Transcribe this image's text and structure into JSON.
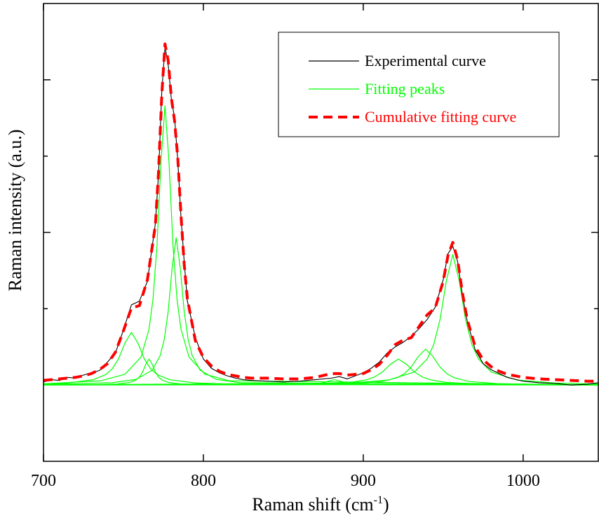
{
  "chart_data": {
    "type": "line",
    "xlabel": {
      "text": "Raman shift (cm",
      "sup": "-1",
      "tail": ")"
    },
    "ylabel": "Raman intensity (a.u.)",
    "xlim": [
      700,
      1047
    ],
    "ylim": [
      -1,
      5
    ],
    "xticks": [
      700,
      800,
      900,
      1000
    ],
    "yticks": [
      2,
      4
    ],
    "yminor": [
      1,
      3
    ],
    "ytick_labels": false,
    "legend": "upper right",
    "x": [
      700,
      705,
      710,
      715,
      720,
      725,
      730,
      735,
      740,
      745,
      750,
      755,
      760,
      765,
      770,
      772,
      774,
      776,
      778,
      780,
      782,
      784,
      786,
      788,
      790,
      795,
      800,
      805,
      810,
      815,
      820,
      825,
      830,
      840,
      850,
      860,
      870,
      880,
      885,
      890,
      895,
      900,
      905,
      910,
      915,
      920,
      925,
      930,
      935,
      940,
      945,
      950,
      953,
      956,
      959,
      962,
      965,
      970,
      975,
      980,
      985,
      990,
      1000,
      1010,
      1020,
      1030,
      1040,
      1047
    ],
    "series": [
      {
        "name": "Experimental curve",
        "color": "#000000",
        "values": [
          0.04,
          0.07,
          0.06,
          0.1,
          0.09,
          0.13,
          0.16,
          0.19,
          0.3,
          0.42,
          0.72,
          1.05,
          1.1,
          1.36,
          2.12,
          2.78,
          3.85,
          4.43,
          4.2,
          3.74,
          3.5,
          2.94,
          2.2,
          1.62,
          1.1,
          0.62,
          0.34,
          0.22,
          0.16,
          0.12,
          0.09,
          0.07,
          0.06,
          0.05,
          0.04,
          0.05,
          0.07,
          0.09,
          0.11,
          0.08,
          0.12,
          0.16,
          0.22,
          0.3,
          0.42,
          0.5,
          0.56,
          0.64,
          0.74,
          0.86,
          1.02,
          1.38,
          1.72,
          1.82,
          1.62,
          1.18,
          0.84,
          0.46,
          0.28,
          0.2,
          0.15,
          0.1,
          0.05,
          0.03,
          0.02,
          0.0,
          0.01,
          0.03
        ]
      },
      {
        "name": "Fitting peaks",
        "color": "#00ff00",
        "components": [
          {
            "x": [
              700,
              715,
              731,
              739,
              743,
              747,
              751,
              755,
              759,
              763,
              767,
              771,
              779,
              795,
              819,
              1047
            ],
            "values": [
              0.014,
              0.027,
              0.069,
              0.138,
              0.212,
              0.345,
              0.552,
              0.69,
              0.552,
              0.345,
              0.212,
              0.138,
              0.069,
              0.027,
              0.011,
              0.001
            ]
          },
          {
            "x": [
              700,
              734,
              746,
              754,
              758,
              760,
              762,
              764,
              766,
              768,
              770,
              772,
              774,
              778,
              786,
              798,
              1047
            ],
            "values": [
              0.001,
              0.005,
              0.013,
              0.034,
              0.068,
              0.105,
              0.17,
              0.272,
              0.34,
              0.272,
              0.17,
              0.105,
              0.068,
              0.034,
              0.013,
              0.005,
              0
            ]
          },
          {
            "x": [
              700,
              736,
              751,
              761,
              766,
              768.5,
              771,
              773.5,
              776,
              778.5,
              781,
              783.5,
              786,
              791,
              801,
              816,
              1047
            ],
            "values": [
              0.016,
              0.056,
              0.141,
              0.366,
              0.732,
              1.126,
              1.83,
              2.928,
              3.66,
              2.928,
              1.83,
              1.126,
              0.732,
              0.366,
              0.141,
              0.056,
              0.001
            ]
          },
          {
            "x": [
              700,
              743,
              758,
              768,
              773,
              775.5,
              778,
              780.5,
              783,
              785.5,
              788,
              790.5,
              793,
              798,
              808,
              823,
              1047
            ],
            "values": [
              0.007,
              0.03,
              0.074,
              0.193,
              0.386,
              0.594,
              0.965,
              1.544,
              1.93,
              1.544,
              0.965,
              0.594,
              0.386,
              0.193,
              0.074,
              0.03,
              0
            ]
          },
          {
            "x": [
              700,
              852,
              864,
              870,
              873,
              876,
              879,
              882,
              885,
              888,
              891,
              894,
              900,
              912,
              1047
            ],
            "values": [
              0,
              0.003,
              0.007,
              0.014,
              0.022,
              0.035,
              0.056,
              0.07,
              0.056,
              0.035,
              0.022,
              0.014,
              0.007,
              0.003,
              0
            ]
          },
          {
            "x": [
              700,
              842,
              872,
              892,
              902,
              907,
              912,
              917,
              922,
              927,
              932,
              937,
              942,
              952,
              972,
              1002,
              1047
            ],
            "values": [
              0.001,
              0.005,
              0.013,
              0.034,
              0.068,
              0.105,
              0.17,
              0.272,
              0.34,
              0.272,
              0.17,
              0.105,
              0.068,
              0.034,
              0.013,
              0.005,
              0.002
            ]
          },
          {
            "x": [
              700,
              867,
              894,
              912,
              921,
              925.5,
              930,
              934.5,
              939,
              943.5,
              948,
              952.5,
              957,
              966,
              984,
              1011,
              1047
            ],
            "values": [
              0.001,
              0.007,
              0.018,
              0.047,
              0.094,
              0.145,
              0.235,
              0.376,
              0.47,
              0.376,
              0.235,
              0.145,
              0.094,
              0.047,
              0.018,
              0.007,
              0.003
            ]
          },
          {
            "x": [
              700,
              892,
              916,
              932,
              940,
              944,
              948,
              952,
              956,
              960,
              964,
              968,
              972,
              980,
              996,
              1020,
              1047
            ],
            "values": [
              0.002,
              0.026,
              0.066,
              0.171,
              0.342,
              0.526,
              0.855,
              1.368,
              1.71,
              1.368,
              0.855,
              0.526,
              0.342,
              0.171,
              0.066,
              0.026,
              0.013
            ]
          }
        ]
      },
      {
        "name": "Cumulative fitting curve",
        "color": "#ff0000",
        "dashed": true,
        "values": [
          0.06,
          0.07,
          0.08,
          0.09,
          0.1,
          0.12,
          0.15,
          0.2,
          0.28,
          0.43,
          0.71,
          1.01,
          1.04,
          1.38,
          2.1,
          2.81,
          3.81,
          4.47,
          4.25,
          3.76,
          3.46,
          2.97,
          2.23,
          1.58,
          1.13,
          0.58,
          0.36,
          0.25,
          0.18,
          0.14,
          0.12,
          0.1,
          0.09,
          0.09,
          0.08,
          0.08,
          0.1,
          0.15,
          0.15,
          0.13,
          0.14,
          0.15,
          0.2,
          0.27,
          0.39,
          0.53,
          0.59,
          0.62,
          0.77,
          0.92,
          1.01,
          1.36,
          1.7,
          1.87,
          1.64,
          1.21,
          0.86,
          0.5,
          0.33,
          0.24,
          0.18,
          0.14,
          0.1,
          0.08,
          0.07,
          0.06,
          0.05,
          0.05
        ]
      }
    ]
  }
}
